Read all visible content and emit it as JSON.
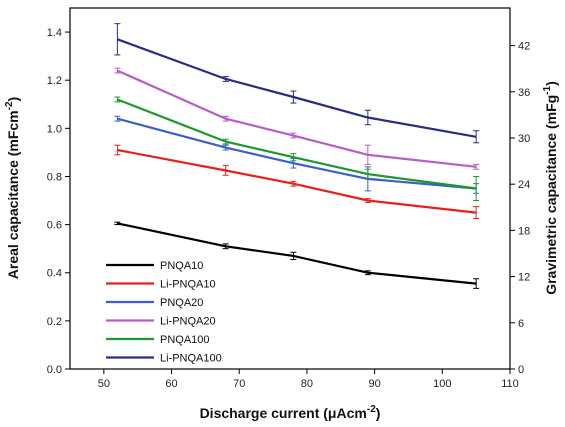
{
  "chart_data": {
    "type": "line",
    "x": [
      52,
      68,
      78,
      89,
      105
    ],
    "xlim": [
      45,
      110
    ],
    "ylim": [
      0,
      1.5
    ],
    "y2lim": [
      0,
      46.88
    ],
    "xticks": [
      "50",
      "60",
      "70",
      "80",
      "90",
      "100",
      "110"
    ],
    "yticks": [
      "0.0",
      "0.2",
      "0.4",
      "0.6",
      "0.8",
      "1.0",
      "1.2",
      "1.4"
    ],
    "y2ticks": [
      "0",
      "6",
      "12",
      "18",
      "24",
      "30",
      "36",
      "42"
    ],
    "xlabel": {
      "text": "Discharge current (μAcm",
      "sup": "-2",
      "tail": ")"
    },
    "ylabel": {
      "text": "Areal capacitance (mFcm",
      "sup": "-2",
      "tail": ")"
    },
    "y2label": {
      "text": "Gravimetric capacitance (mFg",
      "sup": "-1",
      "tail": ")"
    },
    "legend_position": "bottom-left",
    "grid": false,
    "series": [
      {
        "name": "PNQA10",
        "color": "#000000",
        "values": [
          0.605,
          0.51,
          0.47,
          0.4,
          0.355
        ],
        "errors": [
          0.005,
          0.01,
          0.015,
          0.008,
          0.02
        ]
      },
      {
        "name": "Li-PNQA10",
        "color": "#e8201a",
        "values": [
          0.91,
          0.825,
          0.77,
          0.7,
          0.65
        ],
        "errors": [
          0.02,
          0.02,
          0.01,
          0.008,
          0.025
        ]
      },
      {
        "name": "PNQA20",
        "color": "#3a5fcd",
        "values": [
          1.04,
          0.92,
          0.855,
          0.79,
          0.75
        ],
        "errors": [
          0.01,
          0.01,
          0.02,
          0.05,
          0.02
        ]
      },
      {
        "name": "Li-PNQA20",
        "color": "#b85cc8",
        "values": [
          1.24,
          1.04,
          0.97,
          0.89,
          0.84
        ],
        "errors": [
          0.01,
          0.01,
          0.01,
          0.04,
          0.01
        ]
      },
      {
        "name": "PNQA100",
        "color": "#1a9a2a",
        "values": [
          1.12,
          0.945,
          0.88,
          0.81,
          0.75
        ],
        "errors": [
          0.01,
          0.01,
          0.015,
          0.02,
          0.05
        ]
      },
      {
        "name": "Li-PNQA100",
        "color": "#2a2a8a",
        "values": [
          1.37,
          1.205,
          1.13,
          1.045,
          0.965
        ],
        "errors": [
          0.065,
          0.01,
          0.025,
          0.03,
          0.025
        ]
      }
    ]
  }
}
